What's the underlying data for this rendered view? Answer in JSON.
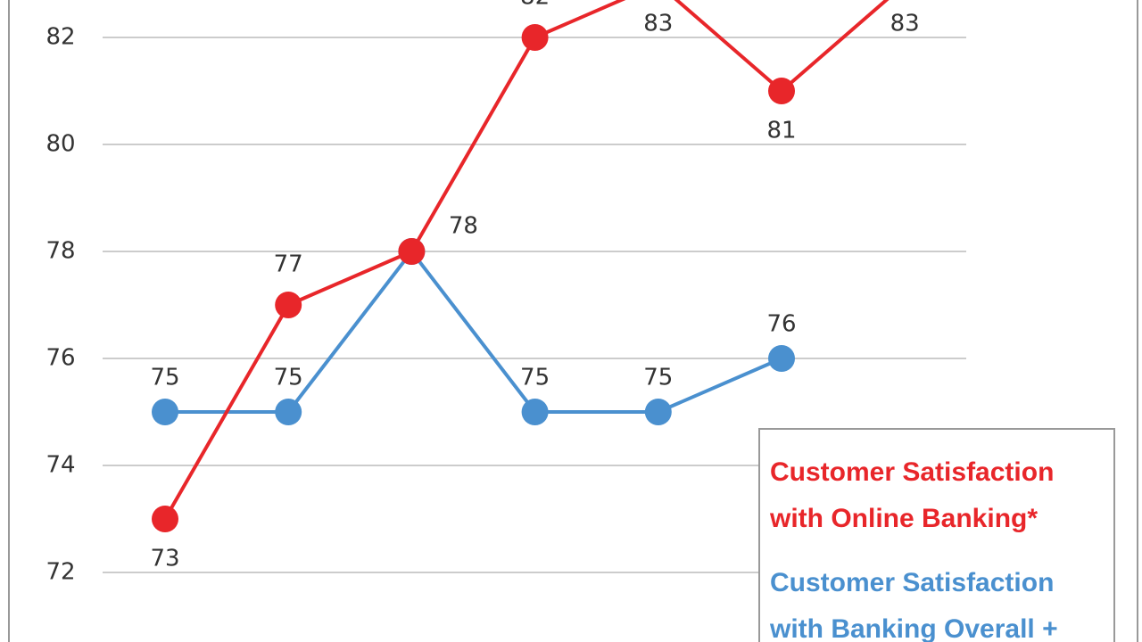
{
  "chart_data": {
    "type": "line",
    "categories": [
      null,
      null,
      null,
      null,
      null,
      null,
      null
    ],
    "series": [
      {
        "name": "Customer Satisfaction with Online Banking*",
        "color": "#e8262a",
        "values": [
          73,
          77,
          78,
          82,
          83,
          81,
          83
        ]
      },
      {
        "name": "Customer Satisfaction with Banking Overall +",
        "color": "#4a90cf",
        "values": [
          75,
          75,
          78,
          75,
          75,
          76,
          null
        ]
      }
    ],
    "ylim": [
      70.7,
      82.7
    ],
    "yticks": [
      72,
      74,
      76,
      78,
      80,
      82
    ],
    "grid": true,
    "legend": "bottom-right"
  }
}
